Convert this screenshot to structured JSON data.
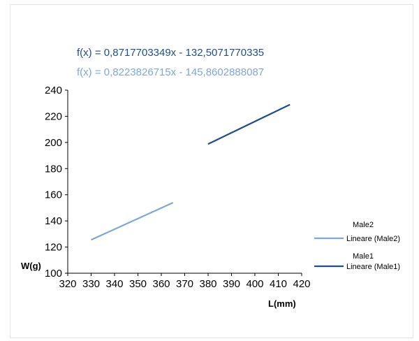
{
  "chart_data": {
    "type": "line",
    "equations": [
      {
        "text": "f(x) = 0,8717703349x - 132,5071770335",
        "color": "#1f4e8c"
      },
      {
        "text": "f(x) = 0,8223826715x - 145,8602888087",
        "color": "#7fa7d8"
      }
    ],
    "xlabel": "L(mm)",
    "ylabel": "W(g)",
    "xlim": [
      320,
      420
    ],
    "ylim": [
      100,
      240
    ],
    "x_ticks": [
      320,
      330,
      340,
      350,
      360,
      370,
      380,
      390,
      400,
      410,
      420
    ],
    "y_ticks": [
      100,
      120,
      140,
      160,
      180,
      200,
      220,
      240
    ],
    "series": [
      {
        "name": "Lineare (Male2)",
        "color": "#7fa7d8",
        "x": [
          330,
          365
        ],
        "y": [
          125.5,
          154
        ]
      },
      {
        "name": "Lineare (Male1)",
        "color": "#1f4e8c",
        "x": [
          380,
          415
        ],
        "y": [
          198.8,
          229
        ]
      }
    ],
    "legend": {
      "placement": "right",
      "entries": [
        {
          "label": "Male2",
          "marker": false
        },
        {
          "label": "Lineare (Male2)",
          "marker": true,
          "color": "#7fa7d8"
        },
        {
          "label": "Male1",
          "marker": false
        },
        {
          "label": "Lineare (Male1)",
          "marker": true,
          "color": "#1f4e8c"
        }
      ]
    },
    "grid": false
  }
}
